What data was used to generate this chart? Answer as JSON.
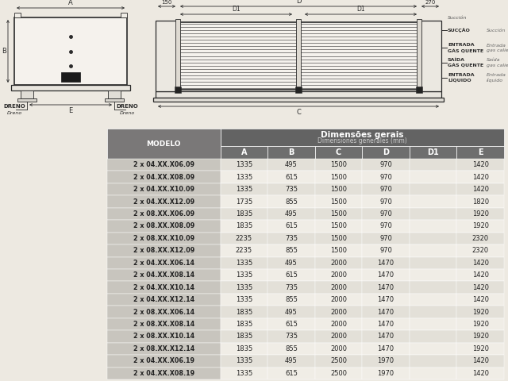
{
  "bg_color": "#ede9e1",
  "table_header_dark": "#636363",
  "table_header_model": "#7a7878",
  "table_col_header": "#6e6e6e",
  "table_row_odd": "#e3e0d8",
  "table_row_even": "#f0ede6",
  "table_model_bg": "#c8c5be",
  "header_title": "Dimensões gerais",
  "header_subtitle": "Dimensiones generales (mm)",
  "col_model": "MODELO",
  "columns": [
    "A",
    "B",
    "C",
    "D",
    "D1",
    "E"
  ],
  "rows": [
    [
      "2 x 04.XX.X06.09",
      "1335",
      "495",
      "1500",
      "970",
      "",
      "1420"
    ],
    [
      "2 x 04.XX.X08.09",
      "1335",
      "615",
      "1500",
      "970",
      "",
      "1420"
    ],
    [
      "2 x 04.XX.X10.09",
      "1335",
      "735",
      "1500",
      "970",
      "",
      "1420"
    ],
    [
      "2 x 04.XX.X12.09",
      "1735",
      "855",
      "1500",
      "970",
      "",
      "1820"
    ],
    [
      "2 x 08.XX.X06.09",
      "1835",
      "495",
      "1500",
      "970",
      "",
      "1920"
    ],
    [
      "2 x 08.XX.X08.09",
      "1835",
      "615",
      "1500",
      "970",
      "",
      "1920"
    ],
    [
      "2 x 08.XX.X10.09",
      "2235",
      "735",
      "1500",
      "970",
      "",
      "2320"
    ],
    [
      "2 x 08.XX.X12.09",
      "2235",
      "855",
      "1500",
      "970",
      "",
      "2320"
    ],
    [
      "2 x 04.XX.X06.14",
      "1335",
      "495",
      "2000",
      "1470",
      "",
      "1420"
    ],
    [
      "2 x 04.XX.X08.14",
      "1335",
      "615",
      "2000",
      "1470",
      "",
      "1420"
    ],
    [
      "2 x 04.XX.X10.14",
      "1335",
      "735",
      "2000",
      "1470",
      "",
      "1420"
    ],
    [
      "2 x 04.XX.X12.14",
      "1335",
      "855",
      "2000",
      "1470",
      "",
      "1420"
    ],
    [
      "2 x 08.XX.X06.14",
      "1835",
      "495",
      "2000",
      "1470",
      "",
      "1920"
    ],
    [
      "2 x 08.XX.X08.14",
      "1835",
      "615",
      "2000",
      "1470",
      "",
      "1920"
    ],
    [
      "2 x 08.XX.X10.14",
      "1835",
      "735",
      "2000",
      "1470",
      "",
      "1920"
    ],
    [
      "2 x 08.XX.X12.14",
      "1835",
      "855",
      "2000",
      "1470",
      "",
      "1920"
    ],
    [
      "2 x 04.XX.X06.19",
      "1335",
      "495",
      "2500",
      "1970",
      "",
      "1420"
    ],
    [
      "2 x 04.XX.X08.19",
      "1335",
      "615",
      "2500",
      "1970",
      "",
      "1420"
    ]
  ],
  "fig_w": 6.4,
  "fig_h": 4.8,
  "dpi": 100
}
